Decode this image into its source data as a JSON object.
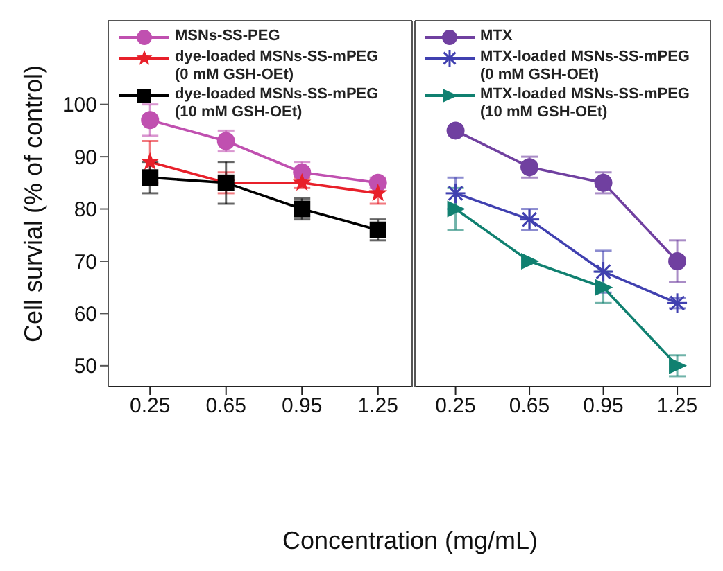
{
  "chart_data": [
    {
      "type": "line",
      "ylabel": "Cell survial (% of control)",
      "xlabel": "Concentration (mg/mL)",
      "categories": [
        "0.25",
        "0.65",
        "0.95",
        "1.25"
      ],
      "ylim": [
        46,
        116
      ],
      "yticks": [
        50,
        60,
        70,
        80,
        90,
        100
      ],
      "legend": "top left",
      "series": [
        {
          "name": "MSNs-SS-PEG",
          "color": "#c050b0",
          "marker": "circle",
          "values": [
            97,
            93,
            87,
            85
          ],
          "errors": [
            3,
            2,
            2,
            1
          ]
        },
        {
          "name": "dye-loaded MSNs-SS-mPEG (0 mM GSH-OEt)",
          "color": "#e8202a",
          "marker": "star",
          "values": [
            89,
            85,
            85,
            83
          ],
          "errors": [
            4,
            2,
            1,
            2
          ]
        },
        {
          "name": "dye-loaded MSNs-SS-mPEG (10 mM GSH-OEt)",
          "color": "#000000",
          "marker": "square",
          "values": [
            86,
            85,
            80,
            76
          ],
          "errors": [
            3,
            4,
            2,
            2
          ]
        }
      ]
    },
    {
      "type": "line",
      "categories": [
        "0.25",
        "0.65",
        "0.95",
        "1.25"
      ],
      "ylim": [
        46,
        116
      ],
      "tick_labels": "x",
      "legend": "top left",
      "series": [
        {
          "name": "MTX",
          "color": "#7040a0",
          "marker": "circle",
          "values": [
            95,
            88,
            85,
            70
          ],
          "errors": [
            null,
            2,
            2,
            4
          ]
        },
        {
          "name": "MTX-loaded MSNs-SS-mPEG (0 mM GSH-OEt)",
          "color": "#4040b0",
          "marker": "cross",
          "values": [
            83,
            78,
            68,
            62
          ],
          "errors": [
            3,
            2,
            4,
            1
          ]
        },
        {
          "name": "MTX-loaded MSNs-SS-mPEG (10 mM GSH-OEt)",
          "color": "#108070",
          "marker": "triangle",
          "values": [
            80,
            70,
            65,
            50
          ],
          "errors": [
            4,
            null,
            3,
            2
          ]
        }
      ]
    }
  ]
}
